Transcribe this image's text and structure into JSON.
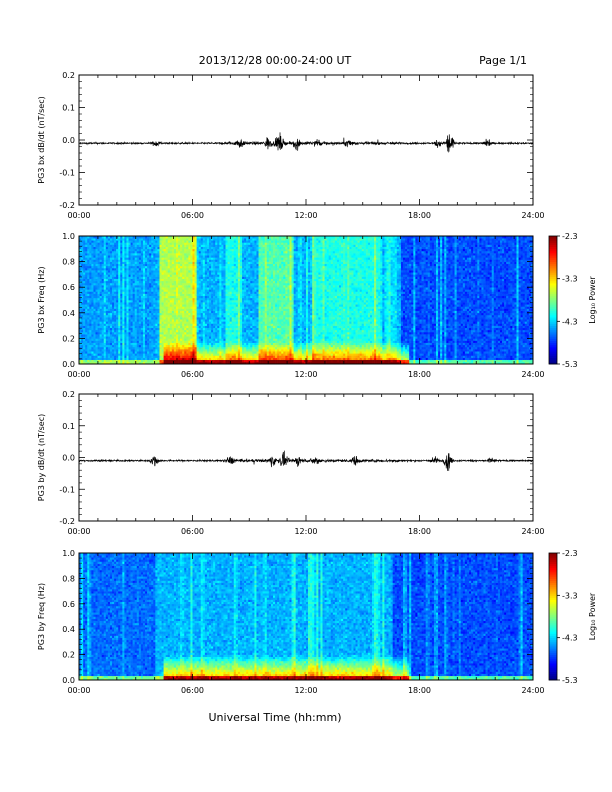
{
  "header": {
    "title": "2013/12/28  00:00-24:00 UT",
    "page": "Page 1/1"
  },
  "xlabel": "Universal Time (hh:mm)",
  "chart_data": [
    {
      "type": "line",
      "name": "bx-dbdt",
      "ylabel": "PG3 bx dB/dt (nT/sec)",
      "xlim": [
        0,
        24
      ],
      "ylim": [
        -0.2,
        0.2
      ],
      "xticks": [
        "00:00",
        "06:00",
        "12:00",
        "18:00",
        "24:00"
      ],
      "yticks": [
        "-0.2",
        "-0.1",
        "0.0",
        "0.1",
        "0.2"
      ],
      "baseline": -0.01,
      "activity": [
        {
          "hour": 4.1,
          "amp": 0.012
        },
        {
          "hour": 8.5,
          "amp": 0.015
        },
        {
          "hour": 10.0,
          "amp": 0.018
        },
        {
          "hour": 10.6,
          "amp": 0.028
        },
        {
          "hour": 11.5,
          "amp": 0.02
        },
        {
          "hour": 12.6,
          "amp": 0.012
        },
        {
          "hour": 14.2,
          "amp": 0.01
        },
        {
          "hour": 19.0,
          "amp": 0.012
        },
        {
          "hour": 19.6,
          "amp": 0.045
        },
        {
          "hour": 21.6,
          "amp": 0.012
        }
      ]
    },
    {
      "type": "heatmap",
      "name": "bx-spectrogram",
      "ylabel": "PG3 bx Freq (Hz)",
      "xlim": [
        0,
        24
      ],
      "ylim": [
        0,
        1.0
      ],
      "xticks": [
        "00:00",
        "06:00",
        "12:00",
        "18:00",
        "24:00"
      ],
      "yticks": [
        "0.0",
        "0.2",
        "0.4",
        "0.6",
        "0.8",
        "1.0"
      ],
      "colorbar": {
        "label": "Log₁₀ Power",
        "range": [
          -5.3,
          -2.3
        ],
        "ticks": [
          "-2.3",
          "-3.3",
          "-4.3",
          "-5.3"
        ]
      },
      "bright_bands": [
        {
          "start": 4.3,
          "end": 6.2,
          "level": 0.55
        },
        {
          "start": 7.8,
          "end": 8.6,
          "level": 0.4
        },
        {
          "start": 9.5,
          "end": 11.3,
          "level": 0.45
        },
        {
          "start": 12.3,
          "end": 15.9,
          "level": 0.4
        },
        {
          "start": 16.2,
          "end": 16.8,
          "level": 0.35
        }
      ],
      "quiet_spans": [
        {
          "start": 0.0,
          "end": 4.0,
          "level": 0.2
        },
        {
          "start": 17.0,
          "end": 24.0,
          "level": 0.12
        }
      ],
      "lowfreq_enhancement": {
        "start": 4.5,
        "end": 17.5,
        "fmax": 0.18
      }
    },
    {
      "type": "line",
      "name": "by-dbdt",
      "ylabel": "PG3 by dB/dt (nT/sec)",
      "xlim": [
        0,
        24
      ],
      "ylim": [
        -0.2,
        0.2
      ],
      "xticks": [
        "00:00",
        "06:00",
        "12:00",
        "18:00",
        "24:00"
      ],
      "yticks": [
        "-0.2",
        "-0.1",
        "0.0",
        "0.1",
        "0.2"
      ],
      "baseline": -0.01,
      "activity": [
        {
          "hour": 4.0,
          "amp": 0.02
        },
        {
          "hour": 8.0,
          "amp": 0.012
        },
        {
          "hour": 10.2,
          "amp": 0.018
        },
        {
          "hour": 10.8,
          "amp": 0.022
        },
        {
          "hour": 11.6,
          "amp": 0.015
        },
        {
          "hour": 12.5,
          "amp": 0.012
        },
        {
          "hour": 14.6,
          "amp": 0.012
        },
        {
          "hour": 18.8,
          "amp": 0.012
        },
        {
          "hour": 19.5,
          "amp": 0.03
        },
        {
          "hour": 21.8,
          "amp": 0.01
        }
      ]
    },
    {
      "type": "heatmap",
      "name": "by-spectrogram",
      "ylabel": "PG3 by Freq (Hz)",
      "xlim": [
        0,
        24
      ],
      "ylim": [
        0,
        1.0
      ],
      "xticks": [
        "00:00",
        "06:00",
        "12:00",
        "18:00",
        "24:00"
      ],
      "yticks": [
        "0.0",
        "0.2",
        "0.4",
        "0.6",
        "0.8",
        "1.0"
      ],
      "colorbar": {
        "label": "Log₁₀ Power",
        "range": [
          -5.3,
          -2.3
        ],
        "ticks": [
          "-2.3",
          "-3.3",
          "-4.3",
          "-5.3"
        ]
      },
      "bright_bands": [
        {
          "start": 4.5,
          "end": 6.0,
          "level": 0.3
        },
        {
          "start": 9.5,
          "end": 11.2,
          "level": 0.28
        },
        {
          "start": 12.3,
          "end": 15.8,
          "level": 0.28
        }
      ],
      "quiet_spans": [
        {
          "start": 0.0,
          "end": 4.0,
          "level": 0.15
        },
        {
          "start": 16.5,
          "end": 24.0,
          "level": 0.12
        }
      ],
      "lowfreq_enhancement": {
        "start": 4.5,
        "end": 17.5,
        "fmax": 0.2
      }
    }
  ]
}
